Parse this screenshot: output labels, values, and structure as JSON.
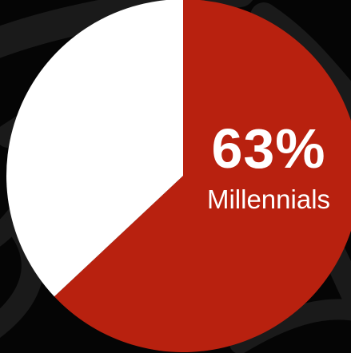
{
  "colors": {
    "background": "#050505",
    "texture": "#1a1a1a",
    "highlight_slice": "#b8210f",
    "remainder_slice": "#ffffff"
  },
  "chart_data": {
    "type": "pie",
    "title": "",
    "slices": [
      {
        "label": "Millennials",
        "value": 63,
        "display": "63%",
        "color": "#b8210f"
      },
      {
        "label": "",
        "value": 37,
        "color": "#ffffff"
      }
    ],
    "start_angle_deg": 0,
    "direction": "clockwise",
    "legend": "none"
  }
}
